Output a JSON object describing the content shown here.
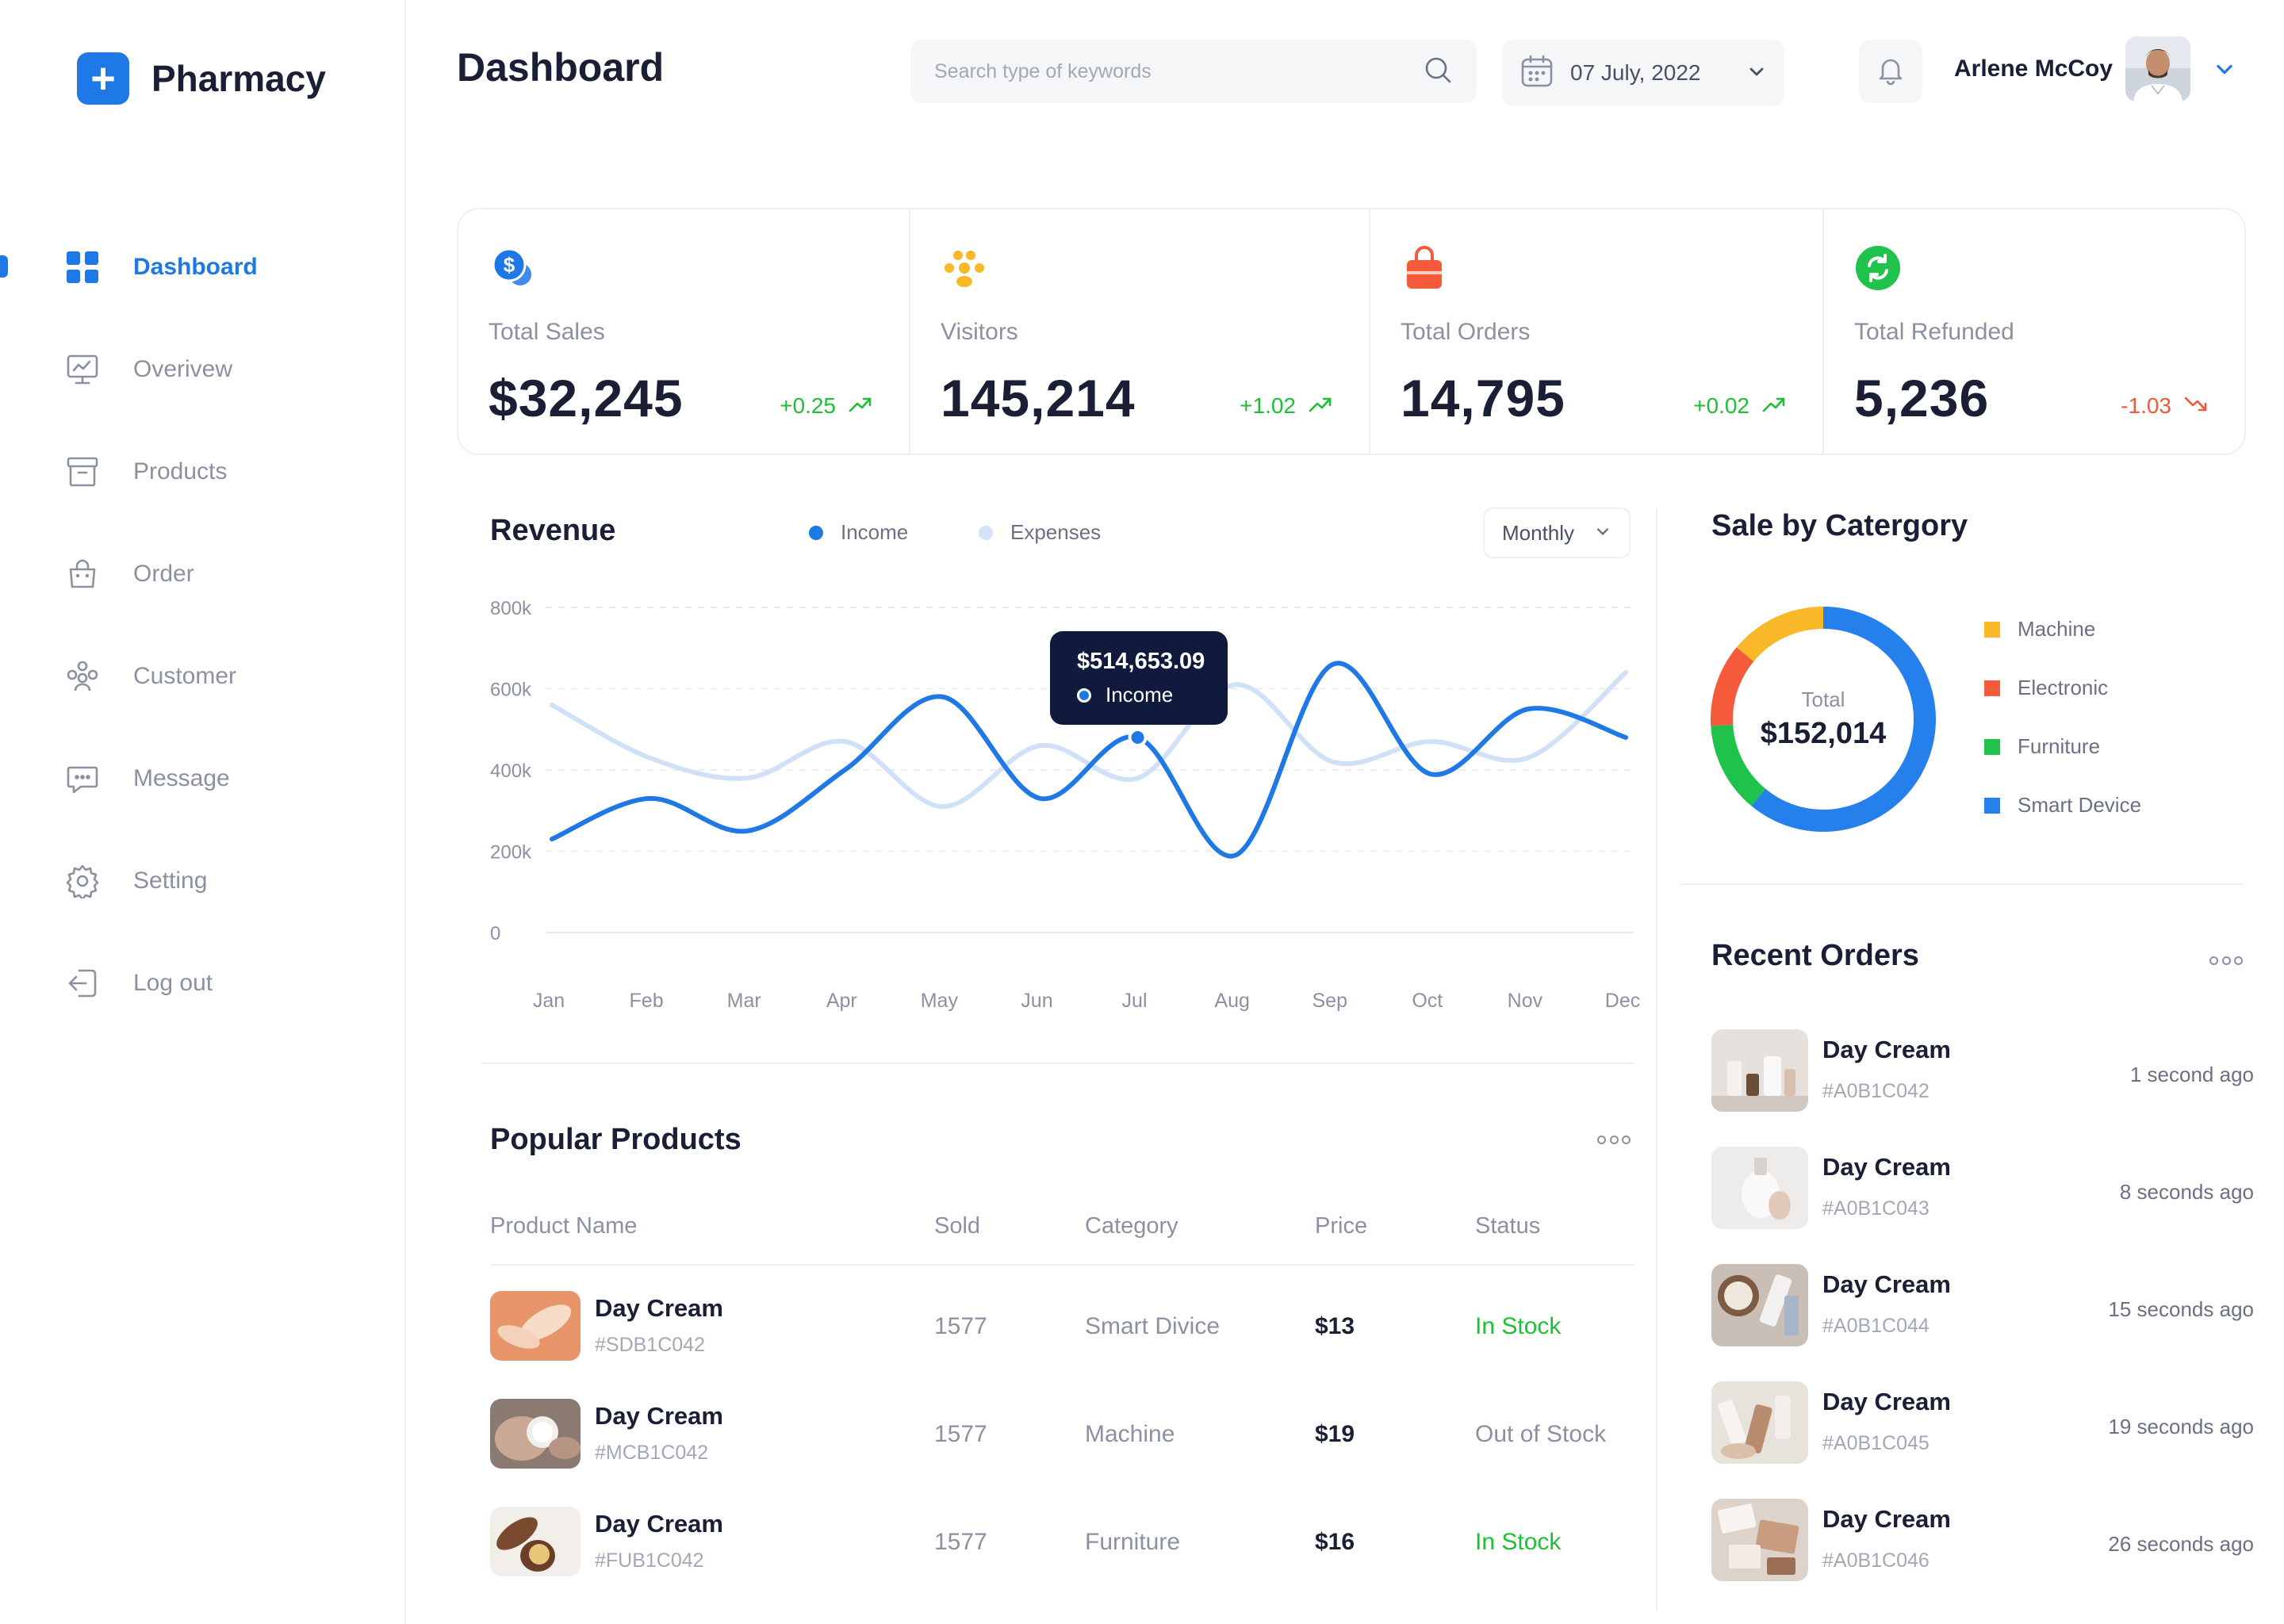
{
  "app": {
    "name": "Pharmacy"
  },
  "colors": {
    "accent": "#1e78e6",
    "up": "#1fbf35",
    "down": "#ef5a3c",
    "machine": "#f8b828",
    "electronic": "#f55a3b",
    "furniture": "#1fc24a",
    "smart_device": "#2680eb"
  },
  "sidebar": {
    "items": [
      {
        "label": "Dashboard",
        "icon": "grid-icon",
        "active": true
      },
      {
        "label": "Overivew",
        "icon": "presentation-chart-icon"
      },
      {
        "label": "Products",
        "icon": "archive-box-icon"
      },
      {
        "label": "Order",
        "icon": "shopping-bag-icon"
      },
      {
        "label": "Customer",
        "icon": "users-icon"
      },
      {
        "label": "Message",
        "icon": "chat-bubble-icon"
      },
      {
        "label": "Setting",
        "icon": "gear-icon"
      },
      {
        "label": "Log out",
        "icon": "logout-icon"
      }
    ]
  },
  "header": {
    "title": "Dashboard",
    "search_placeholder": "Search type of keywords",
    "date": "07 July, 2022",
    "user_name": "Arlene McCoy"
  },
  "stats": [
    {
      "label": "Total Sales",
      "value": "$32,245",
      "delta": "+0.25",
      "trend": "up",
      "icon": "dollar-coin-icon"
    },
    {
      "label": "Visitors",
      "value": "145,214",
      "delta": "+1.02",
      "trend": "up",
      "icon": "people-group-icon"
    },
    {
      "label": "Total Orders",
      "value": "14,795",
      "delta": "+0.02",
      "trend": "up",
      "icon": "shopping-bag-icon"
    },
    {
      "label": "Total Refunded",
      "value": "5,236",
      "delta": "-1.03",
      "trend": "down",
      "icon": "refresh-icon"
    }
  ],
  "revenue": {
    "title": "Revenue",
    "legend": [
      "Income",
      "Expenses"
    ],
    "period": "Monthly",
    "tooltip": {
      "value": "$514,653.09",
      "series": "Income"
    }
  },
  "chart_data": {
    "type": "line",
    "categories": [
      "Jan",
      "Feb",
      "Mar",
      "Apr",
      "May",
      "Jun",
      "Jul",
      "Aug",
      "Sep",
      "Oct",
      "Nov",
      "Dec"
    ],
    "y_ticks": [
      "800k",
      "600k",
      "400k",
      "200k",
      "0"
    ],
    "ylim": [
      0,
      800000
    ],
    "series": [
      {
        "name": "Income",
        "color": "#1e78e6",
        "values": [
          230000,
          330000,
          250000,
          400000,
          580000,
          330000,
          480000,
          190000,
          660000,
          390000,
          550000,
          480000
        ]
      },
      {
        "name": "Expenses",
        "color": "#cfe0f7",
        "values": [
          560000,
          430000,
          380000,
          470000,
          310000,
          460000,
          380000,
          610000,
          420000,
          470000,
          430000,
          640000
        ]
      }
    ],
    "grid": true,
    "legend_position": "top"
  },
  "popular_products": {
    "title": "Popular Products",
    "columns": [
      "Product Name",
      "Sold",
      "Category",
      "Price",
      "Status"
    ],
    "rows": [
      {
        "name": "Day Cream",
        "code": "#SDB1C042",
        "sold": "1577",
        "category": "Smart Divice",
        "price": "$13",
        "status": "In Stock",
        "in_stock": true
      },
      {
        "name": "Day Cream",
        "code": "#MCB1C042",
        "sold": "1577",
        "category": "Machine",
        "price": "$19",
        "status": "Out of Stock",
        "in_stock": false
      },
      {
        "name": "Day Cream",
        "code": "#FUB1C042",
        "sold": "1577",
        "category": "Furniture",
        "price": "$16",
        "status": "In Stock",
        "in_stock": true
      }
    ]
  },
  "sale_by_category": {
    "title": "Sale by Catergory",
    "total_label": "Total",
    "total_value": "$152,014",
    "categories": [
      {
        "name": "Machine",
        "color": "#f8b828",
        "share": 0.14
      },
      {
        "name": "Electronic",
        "color": "#f55a3b",
        "share": 0.12
      },
      {
        "name": "Furniture",
        "color": "#1fc24a",
        "share": 0.13
      },
      {
        "name": "Smart Device",
        "color": "#2680eb",
        "share": 0.61
      }
    ]
  },
  "recent_orders": {
    "title": "Recent Orders",
    "items": [
      {
        "name": "Day Cream",
        "code": "#A0B1C042",
        "time": "1 second ago"
      },
      {
        "name": "Day Cream",
        "code": "#A0B1C043",
        "time": "8 seconds ago"
      },
      {
        "name": "Day Cream",
        "code": "#A0B1C044",
        "time": "15 seconds ago"
      },
      {
        "name": "Day Cream",
        "code": "#A0B1C045",
        "time": "19 seconds ago"
      },
      {
        "name": "Day Cream",
        "code": "#A0B1C046",
        "time": "26 seconds ago"
      }
    ]
  }
}
